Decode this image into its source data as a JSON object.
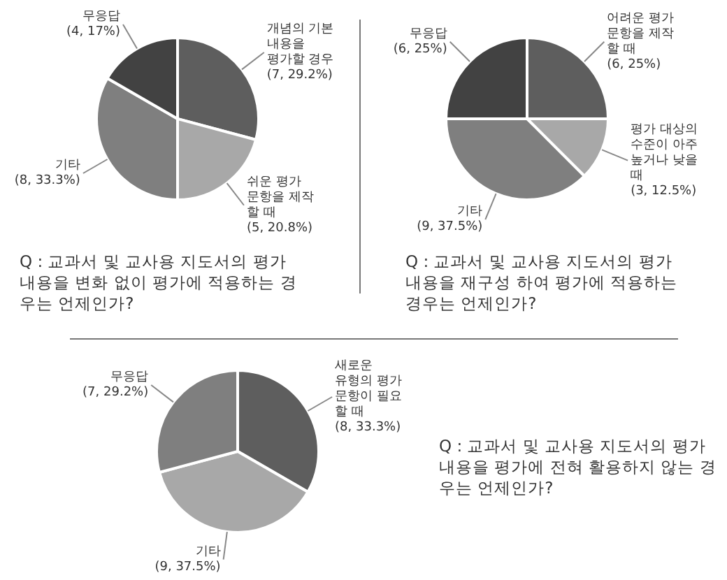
{
  "chart_data": [
    {
      "type": "pie",
      "title": "Q : 교과서 및 교사용 지도서의 평가 내용을 변화 없이 평가에 적용하는 경우는 언제인가?",
      "categories": [
        "개념의 기본 내용을 평가할 경우",
        "쉬운 평가 문항을 제작 할 때",
        "기타",
        "무응답"
      ],
      "values": [
        7,
        5,
        8,
        4
      ],
      "colors": [
        "#5e5e5e",
        "#a8a8a8",
        "#7f7f7f",
        "#424242"
      ],
      "value_labels": [
        "(7, 29.2%)",
        "(5, 20.8%)",
        "(8, 33.3%)",
        "(4, 17%)"
      ]
    },
    {
      "type": "pie",
      "title": "Q : 교과서 및 교사용 지도서의 평가 내용을 재구성 하여 평가에 적용하는 경우는 언제인가?",
      "categories": [
        "어려운 평가 문항을 제작 할 때",
        "평가 대상의 수준이 아주 높거나 낮을 때",
        "기타",
        "무응답"
      ],
      "values": [
        6,
        3,
        9,
        6
      ],
      "colors": [
        "#5e5e5e",
        "#a8a8a8",
        "#7f7f7f",
        "#424242"
      ],
      "value_labels": [
        "(6, 25%)",
        "(3, 12.5%)",
        "(9, 37.5%)",
        "(6, 25%)"
      ]
    },
    {
      "type": "pie",
      "title": "Q : 교과서 및 교사용 지도서의 평가 내용을 평가에 전혀 활용하지 않는 경우는 언제인가?",
      "categories": [
        "새로운 유형의 평가 문항이 필요 할 때",
        "기타",
        "무응답"
      ],
      "values": [
        8,
        9,
        7
      ],
      "colors": [
        "#5e5e5e",
        "#a8a8a8",
        "#7f7f7f"
      ],
      "value_labels": [
        "(8, 33.3%)",
        "(9, 37.5%)",
        "(7, 29.2%)"
      ]
    }
  ]
}
